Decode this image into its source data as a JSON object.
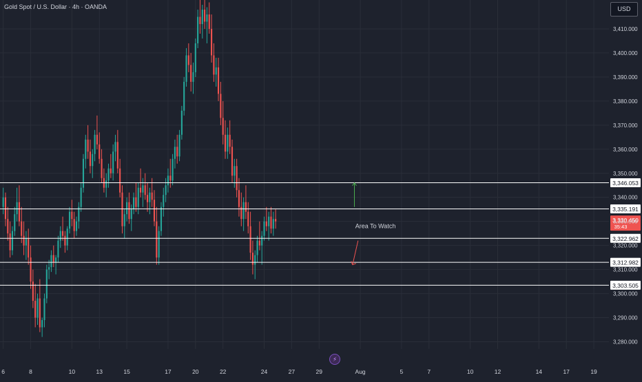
{
  "header": {
    "title": "Gold Spot / U.S. Dollar · 4h · OANDA",
    "currency": "USD"
  },
  "colors": {
    "background": "#1e222d",
    "grid": "#2a2e39",
    "up": "#26a69a",
    "down": "#ef5350",
    "text": "#d1d4dc",
    "level_line": "#ffffff",
    "arrow_up": "#4caf50",
    "arrow_down": "#ef5350"
  },
  "icons": {
    "bottom_marker": "flash-icon"
  },
  "chart_data": {
    "type": "candlestick",
    "title": "Gold Spot / U.S. Dollar · 4h · OANDA",
    "ylim": [
      3277,
      3422
    ],
    "y_ticks": [
      3280,
      3290,
      3300,
      3310,
      3320,
      3330,
      3340,
      3350,
      3360,
      3370,
      3380,
      3390,
      3400,
      3410
    ],
    "y_tick_labels": [
      "3,280.000",
      "3,290.000",
      "3,300.000",
      "3,310.000",
      "3,320.000",
      "3,330.000",
      "3,340.000",
      "3,350.000",
      "3,360.000",
      "3,370.000",
      "3,380.000",
      "3,390.000",
      "3,400.000",
      "3,410.000"
    ],
    "x_ticks": [
      {
        "index": 0,
        "label": "6"
      },
      {
        "index": 12,
        "label": "8"
      },
      {
        "index": 30,
        "label": "10"
      },
      {
        "index": 42,
        "label": "13"
      },
      {
        "index": 54,
        "label": "15"
      },
      {
        "index": 72,
        "label": "17"
      },
      {
        "index": 84,
        "label": "20"
      },
      {
        "index": 96,
        "label": "22"
      },
      {
        "index": 114,
        "label": "24"
      },
      {
        "index": 126,
        "label": "27"
      },
      {
        "index": 138,
        "label": "29"
      },
      {
        "index": 156,
        "label": "Aug"
      },
      {
        "index": 174,
        "label": "5"
      },
      {
        "index": 186,
        "label": "7"
      },
      {
        "index": 204,
        "label": "10"
      },
      {
        "index": 216,
        "label": "12"
      },
      {
        "index": 234,
        "label": "14"
      },
      {
        "index": 246,
        "label": "17"
      },
      {
        "index": 258,
        "label": "19"
      }
    ],
    "candle_count_visible": 266,
    "horizontal_levels": [
      {
        "value": 3346.053,
        "label": "3,346.053"
      },
      {
        "value": 3335.191,
        "label": "3,335.191"
      },
      {
        "value": 3322.962,
        "label": "3,322.962"
      },
      {
        "value": 3312.982,
        "label": "3,312.982"
      },
      {
        "value": 3303.505,
        "label": "3,303.505"
      }
    ],
    "current_price": {
      "value": 3330.45,
      "label": "3,330.450",
      "countdown": "35:43"
    },
    "annotations": [
      {
        "text": "Area To Watch",
        "index": 152,
        "value": 3328.0
      },
      {
        "type": "arrow-up",
        "index": 151,
        "from": 3336.0,
        "to": 3346.0
      },
      {
        "type": "arrow-down",
        "index": 152,
        "from": 3322.0,
        "to": 3312.0
      }
    ],
    "candles": [
      [
        3336,
        3344,
        3333,
        3340
      ],
      [
        3340,
        3342,
        3328,
        3331
      ],
      [
        3331,
        3336,
        3322,
        3325
      ],
      [
        3325,
        3330,
        3315,
        3318
      ],
      [
        3318,
        3328,
        3316,
        3326
      ],
      [
        3326,
        3336,
        3324,
        3333
      ],
      [
        3333,
        3344,
        3330,
        3338
      ],
      [
        3338,
        3345,
        3328,
        3330
      ],
      [
        3330,
        3336,
        3321,
        3324
      ],
      [
        3324,
        3330,
        3316,
        3320
      ],
      [
        3320,
        3326,
        3314,
        3323
      ],
      [
        3323,
        3327,
        3312,
        3315
      ],
      [
        3315,
        3320,
        3302,
        3305
      ],
      [
        3305,
        3310,
        3294,
        3297
      ],
      [
        3297,
        3304,
        3286,
        3290
      ],
      [
        3290,
        3300,
        3287,
        3298
      ],
      [
        3298,
        3306,
        3284,
        3286
      ],
      [
        3286,
        3290,
        3282,
        3289
      ],
      [
        3289,
        3300,
        3286,
        3298
      ],
      [
        3298,
        3312,
        3296,
        3310
      ],
      [
        3310,
        3314,
        3306,
        3311
      ],
      [
        3311,
        3318,
        3309,
        3316
      ],
      [
        3316,
        3320,
        3311,
        3313
      ],
      [
        3313,
        3316,
        3308,
        3315
      ],
      [
        3315,
        3324,
        3313,
        3322
      ],
      [
        3322,
        3328,
        3319,
        3326
      ],
      [
        3326,
        3332,
        3322,
        3324
      ],
      [
        3324,
        3326,
        3317,
        3320
      ],
      [
        3320,
        3328,
        3318,
        3327
      ],
      [
        3327,
        3336,
        3325,
        3334
      ],
      [
        3334,
        3339,
        3328,
        3331
      ],
      [
        3331,
        3334,
        3323,
        3326
      ],
      [
        3326,
        3332,
        3324,
        3330
      ],
      [
        3330,
        3338,
        3327,
        3336
      ],
      [
        3336,
        3346,
        3334,
        3344
      ],
      [
        3344,
        3358,
        3342,
        3356
      ],
      [
        3356,
        3366,
        3352,
        3364
      ],
      [
        3364,
        3370,
        3356,
        3359
      ],
      [
        3359,
        3364,
        3350,
        3353
      ],
      [
        3353,
        3360,
        3348,
        3358
      ],
      [
        3358,
        3368,
        3355,
        3366
      ],
      [
        3366,
        3374,
        3360,
        3362
      ],
      [
        3362,
        3367,
        3354,
        3356
      ],
      [
        3356,
        3360,
        3346,
        3348
      ],
      [
        3348,
        3352,
        3342,
        3344
      ],
      [
        3344,
        3350,
        3340,
        3347
      ],
      [
        3347,
        3354,
        3344,
        3352
      ],
      [
        3352,
        3358,
        3348,
        3350
      ],
      [
        3350,
        3362,
        3347,
        3359
      ],
      [
        3359,
        3366,
        3355,
        3363
      ],
      [
        3363,
        3368,
        3350,
        3352
      ],
      [
        3352,
        3356,
        3340,
        3342
      ],
      [
        3342,
        3345,
        3325,
        3328
      ],
      [
        3328,
        3335,
        3323,
        3333
      ],
      [
        3333,
        3340,
        3330,
        3338
      ],
      [
        3338,
        3342,
        3329,
        3331
      ],
      [
        3331,
        3337,
        3326,
        3335
      ],
      [
        3335,
        3342,
        3333,
        3340
      ],
      [
        3340,
        3346,
        3334,
        3336
      ],
      [
        3336,
        3346,
        3333,
        3344
      ],
      [
        3344,
        3352,
        3340,
        3342
      ],
      [
        3342,
        3348,
        3336,
        3345
      ],
      [
        3345,
        3350,
        3339,
        3341
      ],
      [
        3341,
        3346,
        3334,
        3338
      ],
      [
        3338,
        3344,
        3333,
        3342
      ],
      [
        3342,
        3348,
        3336,
        3339
      ],
      [
        3339,
        3343,
        3328,
        3330
      ],
      [
        3330,
        3336,
        3312,
        3315
      ],
      [
        3315,
        3328,
        3312,
        3326
      ],
      [
        3326,
        3338,
        3324,
        3336
      ],
      [
        3336,
        3344,
        3332,
        3341
      ],
      [
        3341,
        3348,
        3338,
        3345
      ],
      [
        3345,
        3352,
        3342,
        3349
      ],
      [
        3349,
        3356,
        3344,
        3347
      ],
      [
        3347,
        3358,
        3345,
        3356
      ],
      [
        3356,
        3364,
        3352,
        3361
      ],
      [
        3361,
        3366,
        3354,
        3357
      ],
      [
        3357,
        3368,
        3355,
        3366
      ],
      [
        3366,
        3378,
        3364,
        3376
      ],
      [
        3376,
        3390,
        3374,
        3388
      ],
      [
        3388,
        3402,
        3386,
        3399
      ],
      [
        3399,
        3404,
        3392,
        3395
      ],
      [
        3395,
        3400,
        3384,
        3388
      ],
      [
        3388,
        3396,
        3383,
        3392
      ],
      [
        3392,
        3406,
        3390,
        3404
      ],
      [
        3404,
        3418,
        3402,
        3415
      ],
      [
        3415,
        3422,
        3408,
        3412
      ],
      [
        3412,
        3420,
        3406,
        3418
      ],
      [
        3418,
        3422,
        3410,
        3413
      ],
      [
        3413,
        3419,
        3404,
        3416
      ],
      [
        3416,
        3421,
        3408,
        3410
      ],
      [
        3410,
        3416,
        3396,
        3399
      ],
      [
        3399,
        3404,
        3388,
        3391
      ],
      [
        3391,
        3398,
        3386,
        3394
      ],
      [
        3394,
        3398,
        3380,
        3383
      ],
      [
        3383,
        3388,
        3370,
        3373
      ],
      [
        3373,
        3380,
        3362,
        3366
      ],
      [
        3366,
        3372,
        3356,
        3359
      ],
      [
        3359,
        3369,
        3356,
        3366
      ],
      [
        3366,
        3372,
        3358,
        3361
      ],
      [
        3361,
        3364,
        3346,
        3349
      ],
      [
        3349,
        3356,
        3344,
        3353
      ],
      [
        3353,
        3356,
        3340,
        3343
      ],
      [
        3343,
        3348,
        3332,
        3336
      ],
      [
        3336,
        3342,
        3328,
        3331
      ],
      [
        3331,
        3340,
        3326,
        3338
      ],
      [
        3338,
        3345,
        3331,
        3334
      ],
      [
        3334,
        3338,
        3325,
        3328
      ],
      [
        3328,
        3334,
        3314,
        3317
      ],
      [
        3317,
        3322,
        3308,
        3312
      ],
      [
        3312,
        3318,
        3306,
        3316
      ],
      [
        3316,
        3324,
        3313,
        3322
      ],
      [
        3322,
        3330,
        3318,
        3320
      ],
      [
        3320,
        3326,
        3312,
        3324
      ],
      [
        3324,
        3332,
        3322,
        3330
      ],
      [
        3330,
        3336,
        3326,
        3328
      ],
      [
        3328,
        3334,
        3322,
        3332
      ],
      [
        3332,
        3336,
        3325,
        3327
      ],
      [
        3327,
        3334,
        3324,
        3331
      ],
      [
        3331,
        3335,
        3327,
        3330
      ]
    ]
  }
}
